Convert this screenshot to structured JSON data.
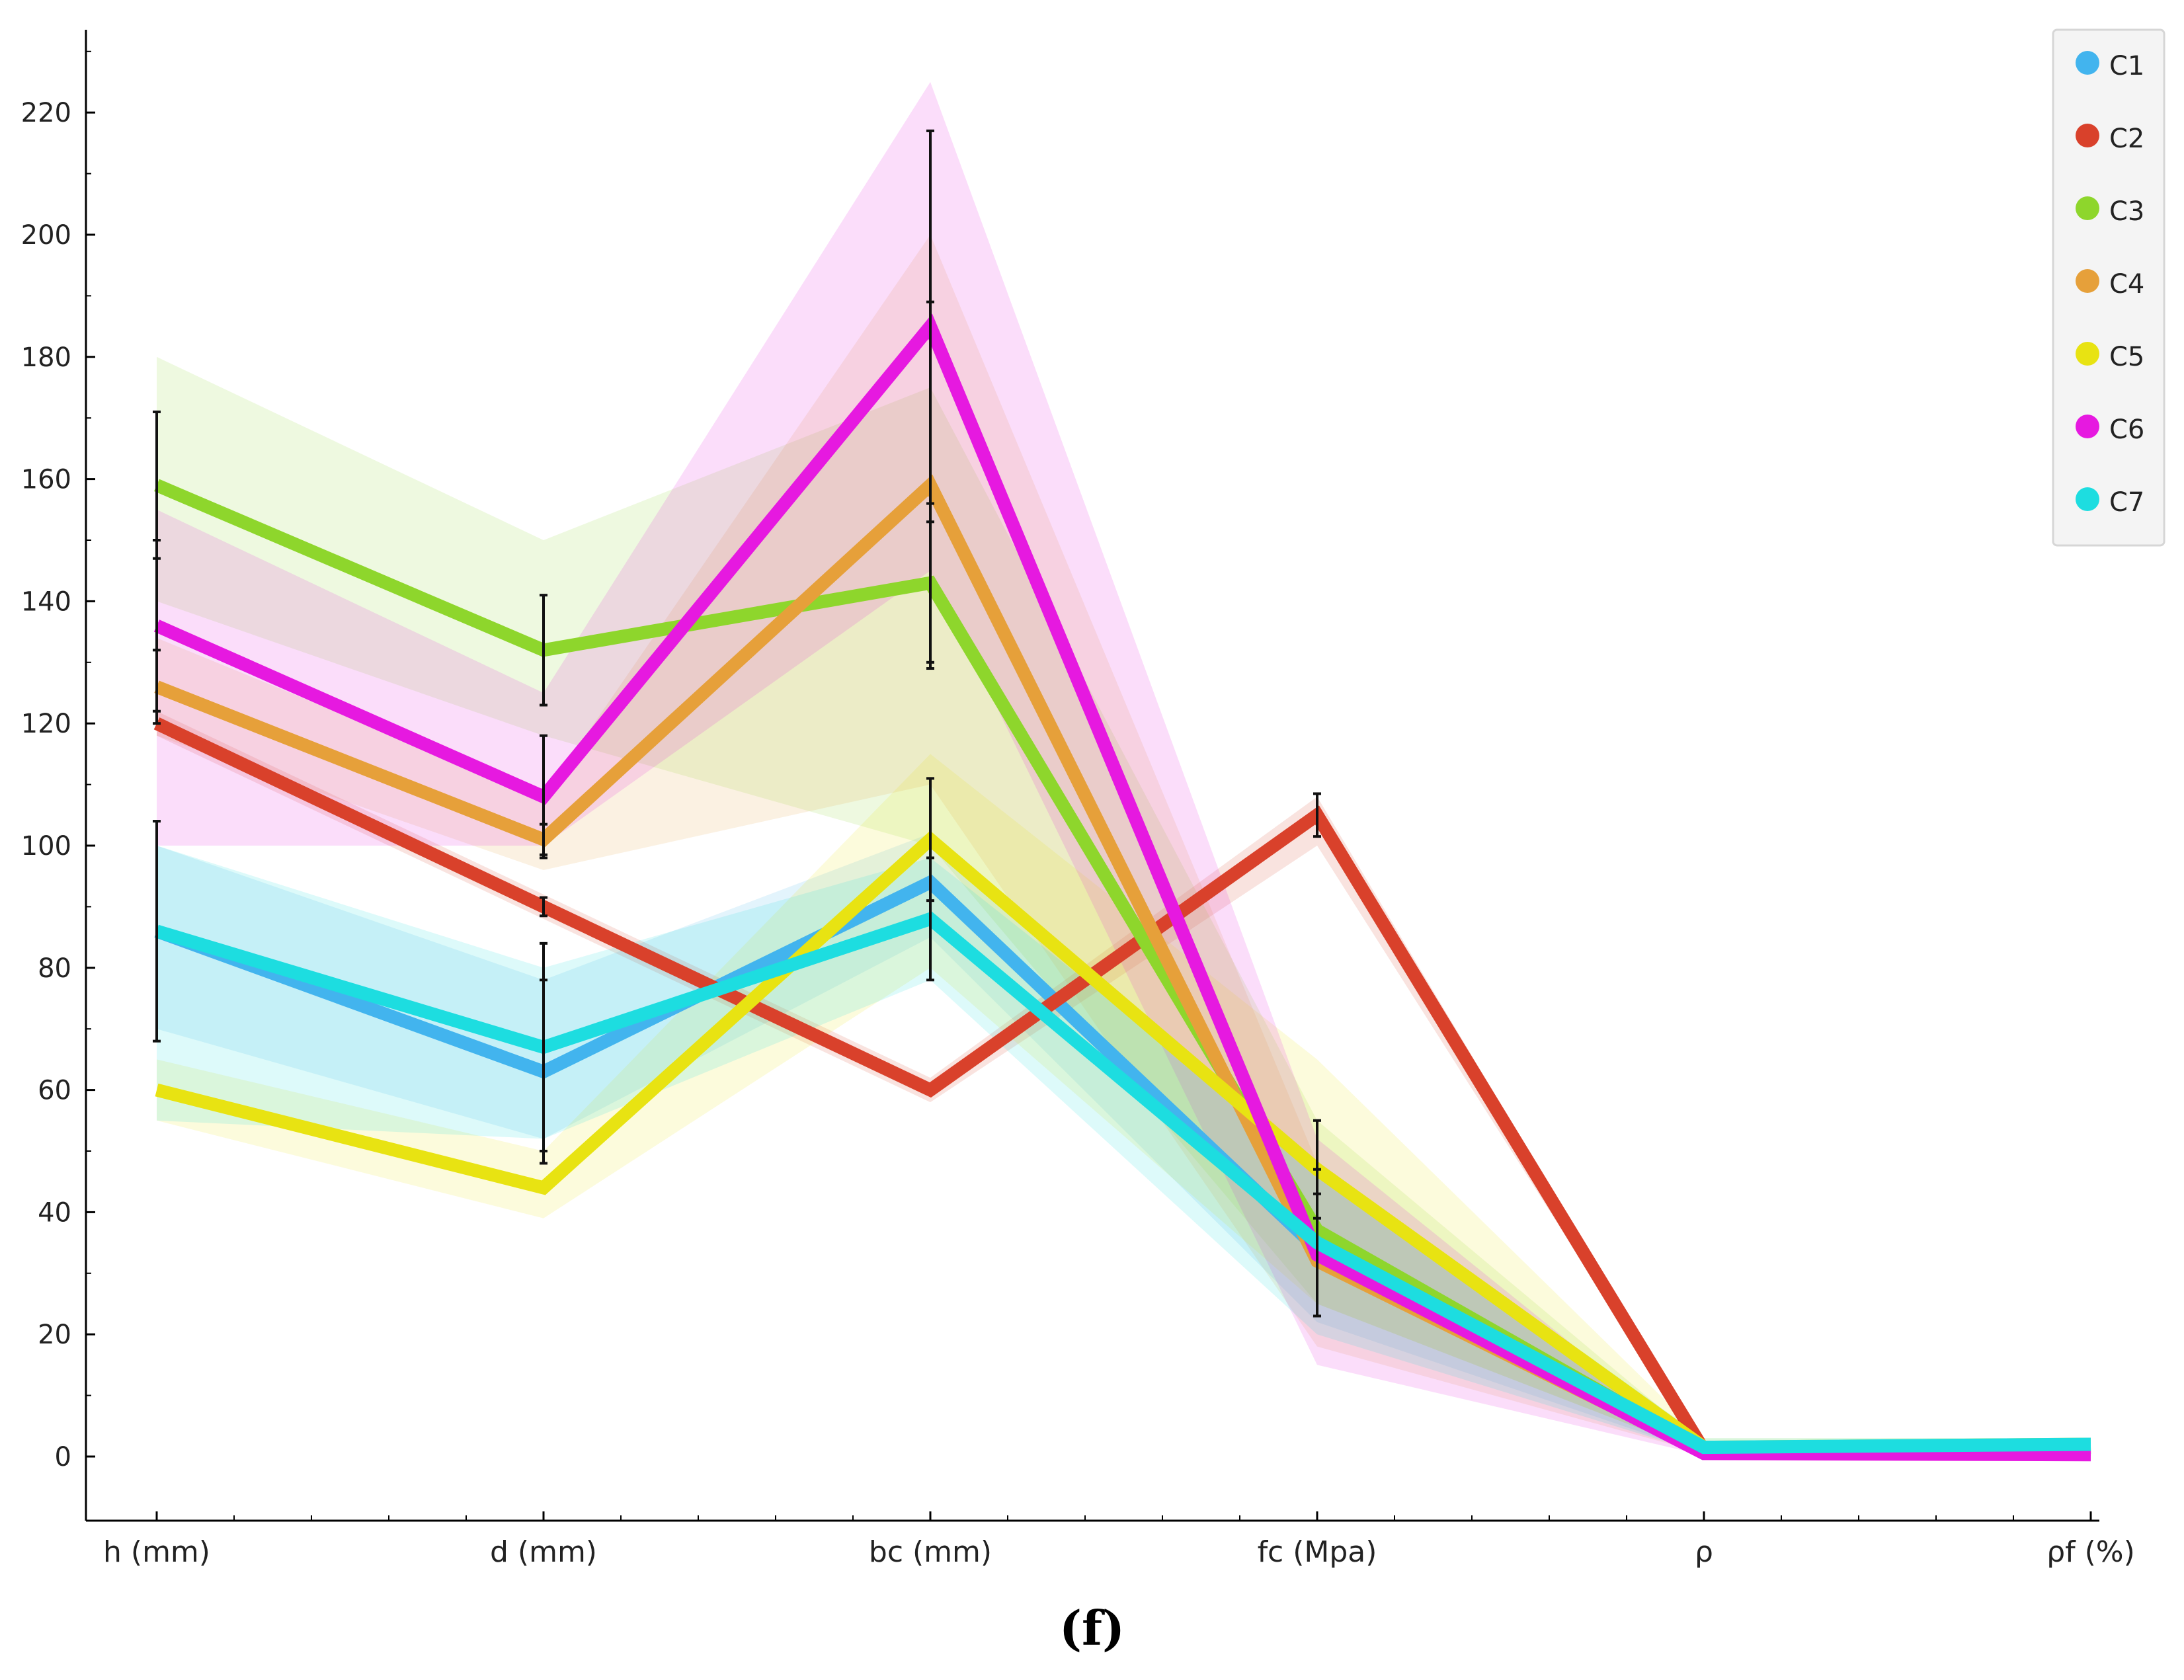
{
  "caption": "(f)",
  "chart_data": {
    "type": "line",
    "subtype": "parallel-coordinates",
    "title": "",
    "xlabel": "",
    "ylabel": "",
    "categories": [
      "h (mm)",
      "d (mm)",
      "bc (mm)",
      "fc (Mpa)",
      "ρ",
      "ρf (%)"
    ],
    "ylim": [
      -10,
      232
    ],
    "yticks": [
      0,
      20,
      40,
      60,
      80,
      100,
      120,
      140,
      160,
      180,
      200,
      220
    ],
    "legend_position": "top-right",
    "series": [
      {
        "name": "C1",
        "color": "#42B4EE",
        "values": [
          86,
          63,
          94,
          34,
          0.8,
          1.5
        ],
        "band_low": [
          70,
          52,
          85,
          22,
          0.5,
          0.5
        ],
        "band_high": [
          100,
          78,
          102,
          48,
          2,
          2.5
        ],
        "error": [
          null,
          15,
          null,
          null,
          null,
          null
        ]
      },
      {
        "name": "C2",
        "color": "#D9412B",
        "values": [
          120,
          90,
          60,
          105,
          1,
          1.2
        ],
        "band_low": [
          118,
          88,
          58,
          100,
          0.5,
          0.5
        ],
        "band_high": [
          122,
          92,
          62,
          108,
          2,
          2
        ],
        "error": [
          null,
          1.5,
          null,
          3.5,
          null,
          null
        ]
      },
      {
        "name": "C3",
        "color": "#8ED62C",
        "values": [
          159,
          132,
          143,
          37,
          1,
          1.5
        ],
        "band_low": [
          140,
          118,
          100,
          25,
          0.5,
          0.5
        ],
        "band_high": [
          180,
          150,
          175,
          55,
          2,
          2.5
        ],
        "error": [
          12,
          9,
          13,
          null,
          null,
          null
        ]
      },
      {
        "name": "C4",
        "color": "#E6A03A",
        "values": [
          126,
          101,
          159,
          32,
          0.8,
          1.5
        ],
        "band_low": [
          118,
          96,
          110,
          18,
          0.5,
          0.5
        ],
        "band_high": [
          134,
          108,
          200,
          48,
          2,
          2.5
        ],
        "error": [
          6,
          2.5,
          30,
          null,
          null,
          null
        ]
      },
      {
        "name": "C5",
        "color": "#E8E312",
        "values": [
          60,
          44,
          101,
          47,
          1.5,
          2
        ],
        "band_low": [
          55,
          39,
          80,
          25,
          0.5,
          0.5
        ],
        "band_high": [
          65,
          50,
          115,
          65,
          3,
          3
        ],
        "error": [
          null,
          null,
          10,
          8,
          null,
          null
        ]
      },
      {
        "name": "C6",
        "color": "#E619E0",
        "values": [
          136,
          108,
          185,
          33,
          0.5,
          0.3
        ],
        "band_low": [
          100,
          100,
          145,
          15,
          0.2,
          0.1
        ],
        "band_high": [
          155,
          125,
          225,
          52,
          1,
          1
        ],
        "error": [
          14,
          10,
          32,
          10,
          null,
          null
        ]
      },
      {
        "name": "C7",
        "color": "#1DDDE0",
        "values": [
          86,
          67,
          88,
          35,
          1.5,
          2
        ],
        "band_low": [
          55,
          52,
          78,
          20,
          0.5,
          0.5
        ],
        "band_high": [
          100,
          80,
          98,
          48,
          3,
          3
        ],
        "error": [
          18,
          17,
          10,
          12,
          null,
          null
        ]
      }
    ]
  }
}
